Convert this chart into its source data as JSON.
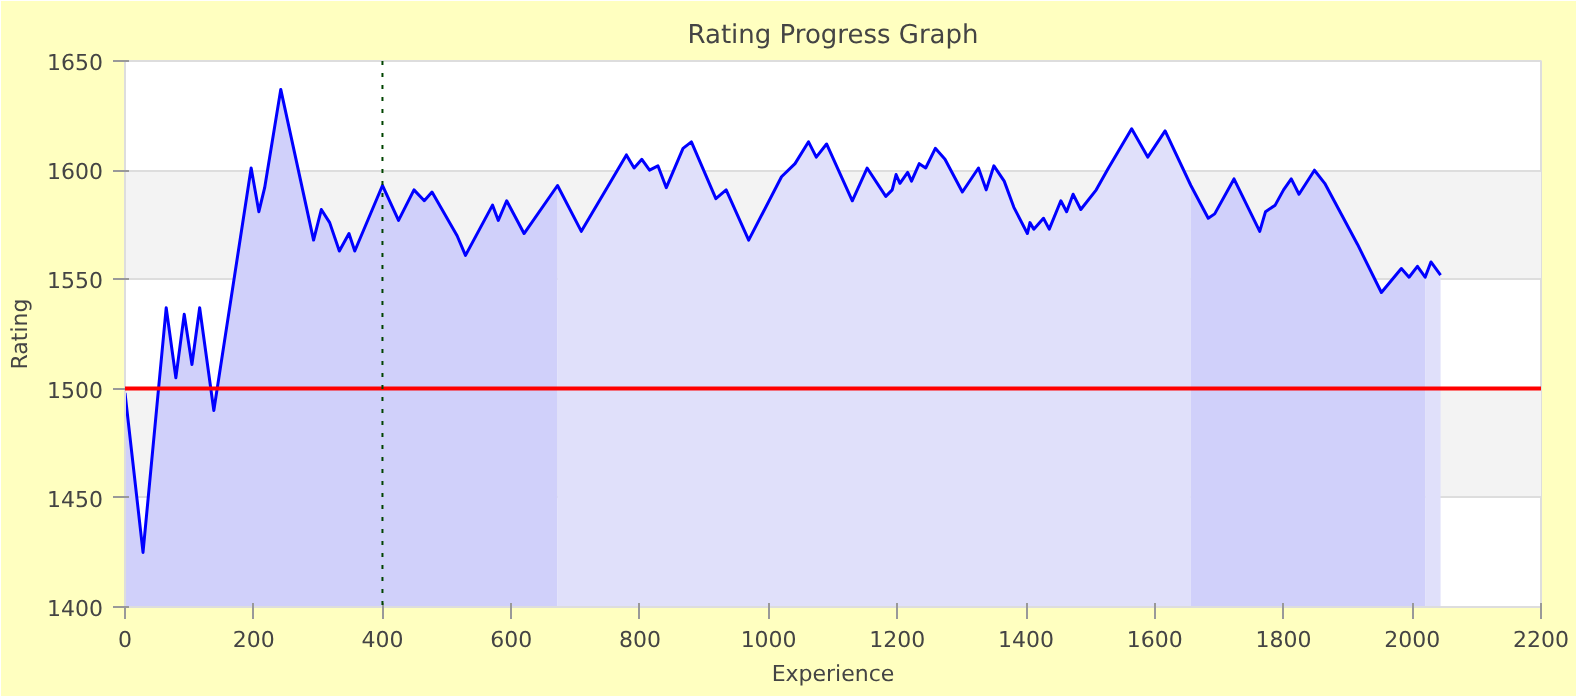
{
  "chart_data": {
    "type": "line",
    "title": "Rating Progress Graph",
    "xlabel": "Experience",
    "ylabel": "Rating",
    "xlim": [
      0,
      2200
    ],
    "xticks": [
      0,
      200,
      400,
      600,
      800,
      1000,
      1200,
      1400,
      1600,
      1800,
      2000,
      2200
    ],
    "ylim": [
      1400,
      1650
    ],
    "yticks": [
      1400,
      1450,
      1500,
      1550,
      1600,
      1650
    ],
    "grid": "y",
    "marker": "none",
    "line_style": "solid",
    "series": [
      {
        "type": "area",
        "color": "#d0d0fa",
        "x": [
          0,
          28,
          64,
          79,
          92,
          104,
          116,
          138,
          196,
          208,
          217,
          242,
          293,
          305,
          318,
          333,
          348,
          357,
          400,
          425,
          449,
          465,
          477,
          516,
          529,
          571,
          580,
          593,
          620,
          672
        ],
        "values": [
          1498,
          1425,
          1537,
          1505,
          1534,
          1511,
          1537,
          1490,
          1601,
          1581,
          1592,
          1637,
          1568,
          1582,
          1576,
          1563,
          1571,
          1563,
          1593,
          1577,
          1591,
          1586,
          1590,
          1570,
          1561,
          1584,
          1577,
          1586,
          1571,
          1593
        ]
      },
      {
        "type": "area",
        "color": "#e0e0fa",
        "x": [
          672,
          709,
          749,
          779,
          791,
          803,
          815,
          828,
          841,
          867,
          880,
          918,
          934,
          969,
          1020,
          1041,
          1062,
          1074,
          1090,
          1130,
          1153,
          1182,
          1192,
          1198,
          1204,
          1216,
          1222,
          1234,
          1244,
          1259,
          1274,
          1301,
          1326,
          1338,
          1350,
          1366,
          1381,
          1402,
          1406,
          1412,
          1427,
          1436,
          1454,
          1463,
          1473,
          1485,
          1509,
          1528,
          1564,
          1589,
          1616,
          1656
        ],
        "values": [
          1593,
          1572,
          1592,
          1607,
          1601,
          1605,
          1600,
          1602,
          1592,
          1610,
          1613,
          1587,
          1591,
          1568,
          1597,
          1603,
          1613,
          1606,
          1612,
          1586,
          1601,
          1588,
          1591,
          1598,
          1594,
          1599,
          1595,
          1603,
          1601,
          1610,
          1605,
          1590,
          1601,
          1591,
          1602,
          1595,
          1583,
          1571,
          1576,
          1573,
          1578,
          1573,
          1586,
          1581,
          1589,
          1582,
          1591,
          1601,
          1619,
          1606,
          1618,
          1593
        ]
      },
      {
        "type": "area",
        "color": "#d0d0fa",
        "x": [
          1656,
          1683,
          1693,
          1723,
          1763,
          1772,
          1787,
          1800,
          1812,
          1824,
          1848,
          1864,
          1915,
          1952,
          1983,
          1995,
          2008,
          2020
        ],
        "values": [
          1593,
          1578,
          1580,
          1596,
          1572,
          1581,
          1584,
          1591,
          1596,
          1589,
          1600,
          1594,
          1566,
          1544,
          1555,
          1551,
          1556,
          1551
        ]
      },
      {
        "type": "area",
        "color": "#e0e0fa",
        "x": [
          2020,
          2029,
          2044
        ],
        "values": [
          1551,
          1558,
          1552
        ]
      },
      {
        "color": "#0000ff",
        "x": [
          0,
          28,
          64,
          79,
          92,
          104,
          116,
          138,
          196,
          208,
          217,
          242,
          293,
          305,
          318,
          333,
          348,
          357,
          400,
          425,
          449,
          465,
          477,
          516,
          529,
          571,
          580,
          593,
          620,
          672,
          709,
          749,
          779,
          791,
          803,
          815,
          828,
          841,
          867,
          880,
          918,
          934,
          969,
          1020,
          1041,
          1062,
          1074,
          1090,
          1130,
          1153,
          1182,
          1192,
          1198,
          1204,
          1216,
          1222,
          1234,
          1244,
          1259,
          1274,
          1301,
          1326,
          1338,
          1350,
          1366,
          1381,
          1402,
          1406,
          1412,
          1427,
          1436,
          1454,
          1463,
          1473,
          1485,
          1509,
          1528,
          1564,
          1589,
          1616,
          1656,
          1683,
          1693,
          1723,
          1763,
          1772,
          1787,
          1800,
          1812,
          1824,
          1848,
          1864,
          1915,
          1952,
          1983,
          1995,
          2008,
          2020,
          2029,
          2044
        ],
        "values": [
          1498,
          1425,
          1537,
          1505,
          1534,
          1511,
          1537,
          1490,
          1601,
          1581,
          1592,
          1637,
          1568,
          1582,
          1576,
          1563,
          1571,
          1563,
          1593,
          1577,
          1591,
          1586,
          1590,
          1570,
          1561,
          1584,
          1577,
          1586,
          1571,
          1593,
          1572,
          1592,
          1607,
          1601,
          1605,
          1600,
          1602,
          1592,
          1610,
          1613,
          1587,
          1591,
          1568,
          1597,
          1603,
          1613,
          1606,
          1612,
          1586,
          1601,
          1588,
          1591,
          1598,
          1594,
          1599,
          1595,
          1603,
          1601,
          1610,
          1605,
          1590,
          1601,
          1591,
          1602,
          1595,
          1583,
          1571,
          1576,
          1573,
          1578,
          1573,
          1586,
          1581,
          1589,
          1582,
          1591,
          1601,
          1619,
          1606,
          1618,
          1593,
          1578,
          1580,
          1596,
          1572,
          1581,
          1584,
          1591,
          1596,
          1589,
          1600,
          1594,
          1566,
          1544,
          1555,
          1551,
          1556,
          1551,
          1558,
          1552
        ]
      }
    ],
    "ref_lines": [
      {
        "axis": "y",
        "value": 1500,
        "color": "#ff0000",
        "line_style": "solid"
      },
      {
        "axis": "x",
        "value": 400,
        "color": "#004400",
        "line_style": "dotted"
      }
    ]
  }
}
